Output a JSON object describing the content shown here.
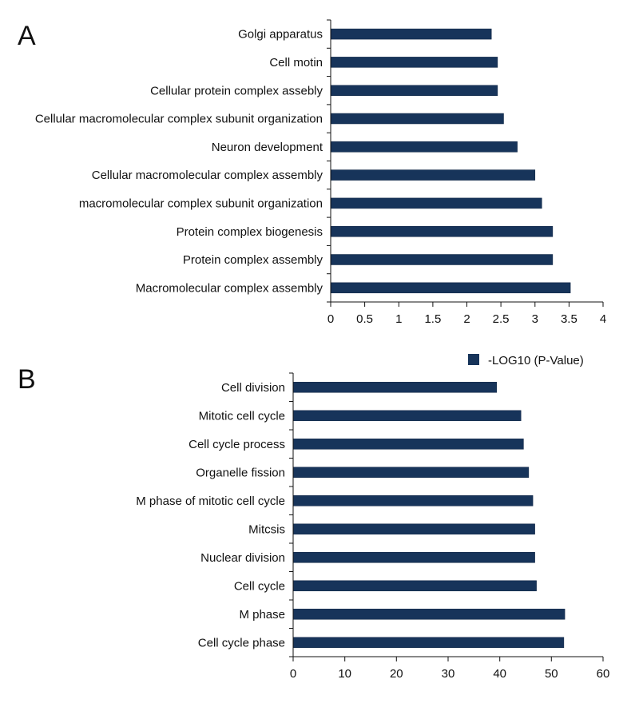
{
  "colors": {
    "bar": "#17345a",
    "bar_stroke": "#0d2240",
    "axis": "#111111",
    "text": "#111111"
  },
  "legend": {
    "label": "-LOG10 (P-Value)"
  },
  "chart_data": [
    {
      "type": "bar",
      "orientation": "horizontal",
      "panel": "A",
      "categories": [
        "Golgi apparatus",
        "Cell motin",
        "Cellular protein complex assebly",
        "Cellular macromolecular complex subunit organization",
        "Neuron development",
        "Cellular macromolecular complex assembly",
        "macromolecular complex subunit organization",
        "Protein complex biogenesis",
        "Protein complex assembly",
        "Macromolecular complex assembly"
      ],
      "series": [
        {
          "name": "-LOG10 (P-Value)",
          "values": [
            2.36,
            2.45,
            2.45,
            2.54,
            2.74,
            3.0,
            3.1,
            3.26,
            3.26,
            3.52
          ]
        }
      ],
      "xlim": [
        0,
        4
      ],
      "xticks": [
        0,
        0.5,
        1,
        1.5,
        2,
        2.5,
        3,
        3.5,
        4
      ],
      "tick_labels": [
        "0",
        "0.5",
        "1",
        "1.5",
        "2",
        "2.5",
        "3",
        "3.5",
        "4"
      ],
      "xlabel": "",
      "ylabel": "",
      "grid": false
    },
    {
      "type": "bar",
      "orientation": "horizontal",
      "panel": "B",
      "categories": [
        "Cell division",
        "Mitotic cell cycle",
        "Cell cycle process",
        "Organelle fission",
        "M phase of mitotic cell cycle",
        "Mitcsis",
        "Nuclear division",
        "Cell cycle",
        "M phase",
        "Cell cycle phase"
      ],
      "series": [
        {
          "name": "-LOG10 (P-Value)",
          "values": [
            39.4,
            44.1,
            44.6,
            45.6,
            46.4,
            46.8,
            46.8,
            47.1,
            52.6,
            52.4
          ]
        }
      ],
      "xlim": [
        0,
        60
      ],
      "xticks": [
        0,
        10,
        20,
        30,
        40,
        50,
        60
      ],
      "tick_labels": [
        "0",
        "10",
        "20",
        "30",
        "40",
        "50",
        "60"
      ],
      "xlabel": "",
      "ylabel": "",
      "grid": false,
      "legend_position": "top-right"
    }
  ]
}
